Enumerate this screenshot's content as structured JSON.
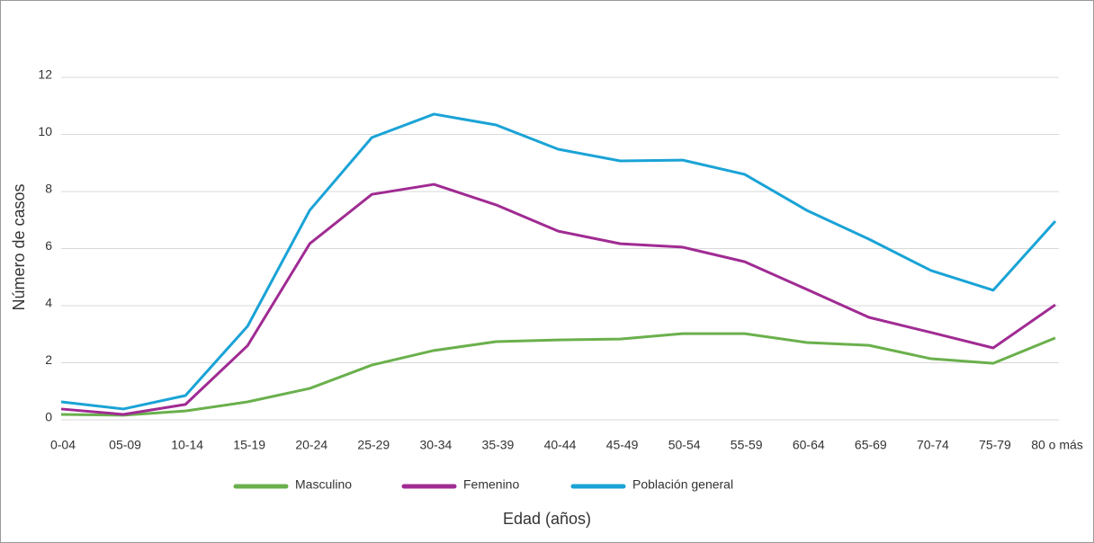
{
  "chart_data": {
    "type": "line",
    "x_label": "Edad (años)",
    "y_label": "Número de casos",
    "categories": [
      "0-04",
      "05-09",
      "10-14",
      "15-19",
      "20-24",
      "25-29",
      "30-34",
      "35-39",
      "40-44",
      "45-49",
      "50-54",
      "55-59",
      "60-64",
      "65-69",
      "70-74",
      "75-79",
      "80 o más"
    ],
    "series": [
      {
        "name": "Masculino",
        "color": "#6ab04c",
        "values": [
          0.19,
          0.16,
          0.31,
          0.63,
          1.1,
          1.92,
          2.43,
          2.74,
          2.8,
          2.83,
          3.02,
          3.02,
          2.71,
          2.61,
          2.14,
          1.98,
          2.87
        ]
      },
      {
        "name": "Femenino",
        "color": "#a02b93",
        "values": [
          0.38,
          0.19,
          0.54,
          2.6,
          6.17,
          7.9,
          8.25,
          7.53,
          6.61,
          6.17,
          6.05,
          5.54,
          4.57,
          3.59,
          3.06,
          2.52,
          4.03
        ]
      },
      {
        "name": "Población general",
        "color": "#1aa3d6",
        "values": [
          0.63,
          0.38,
          0.85,
          3.28,
          7.34,
          9.89,
          10.71,
          10.33,
          9.48,
          9.07,
          9.1,
          8.6,
          7.34,
          6.33,
          5.23,
          4.54,
          6.96
        ]
      }
    ],
    "ylim": [
      0,
      12
    ],
    "yticks": [
      0,
      2,
      4,
      6,
      8,
      10,
      12
    ],
    "grid": true,
    "legend": "bottom"
  }
}
